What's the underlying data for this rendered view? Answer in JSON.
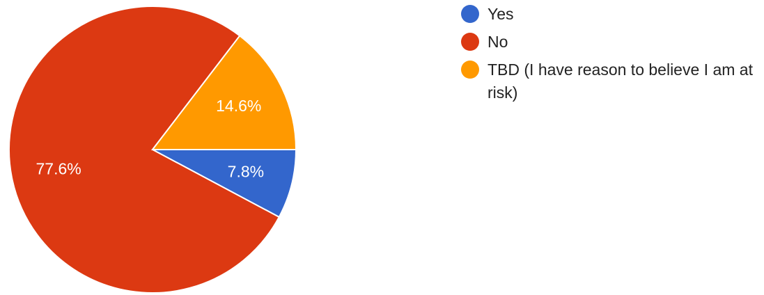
{
  "chart_data": {
    "type": "pie",
    "title": "",
    "legend_position": "right",
    "slices": [
      {
        "label": "Yes",
        "value": 7.8,
        "value_label": "7.8%",
        "color": "#3366cc"
      },
      {
        "label": "TBD (I have reason to believe I am at risk)",
        "value": 14.6,
        "value_label": "14.6%",
        "color": "#ff9900"
      },
      {
        "label": "No",
        "value": 77.6,
        "value_label": "77.6%",
        "color": "#dc3912"
      }
    ]
  },
  "legend": {
    "items": [
      {
        "label": "Yes",
        "color": "#3366cc"
      },
      {
        "label": "No",
        "color": "#dc3912"
      },
      {
        "label": "TBD (I have reason to believe I am at risk)",
        "color": "#ff9900"
      }
    ]
  }
}
